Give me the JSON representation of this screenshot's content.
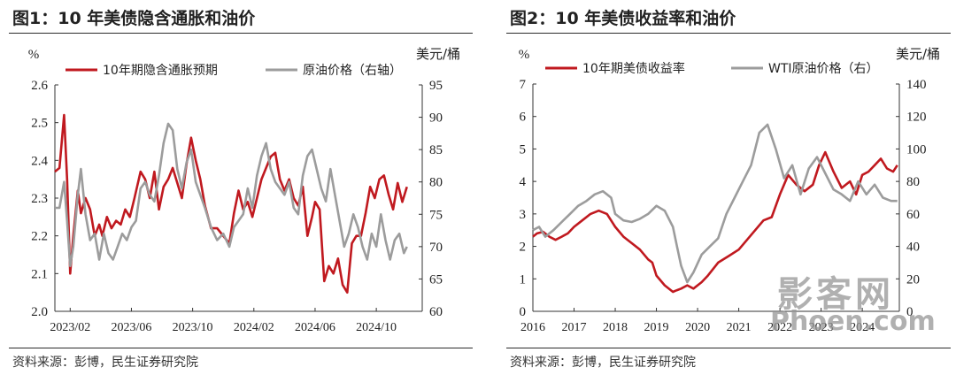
{
  "left": {
    "fig_title": "图1：10 年美债隐含通胀和油价",
    "source": "资料来源：彭博，民生证券研究院"
  },
  "right": {
    "fig_title": "图2：10 年美债收益率和油价",
    "source": "资料来源：彭博，民生证券研究院"
  },
  "watermark": {
    "cn": "影客网",
    "en": "Phoen.com"
  },
  "colors": {
    "primary_series": "#c0191f",
    "secondary_series": "#9c9c9c"
  },
  "chart_data": [
    {
      "type": "line",
      "title": "图1：10 年美债隐含通胀和油价",
      "ylabel": "%",
      "y2label": "美元/桶",
      "ylim": [
        2.0,
        2.6
      ],
      "y2lim": [
        60,
        95
      ],
      "yticks": [
        "2.0",
        "2.1",
        "2.2",
        "2.3",
        "2.4",
        "2.5",
        "2.6"
      ],
      "y2ticks": [
        "60",
        "65",
        "70",
        "75",
        "80",
        "85",
        "90",
        "95"
      ],
      "xlim": [
        0,
        24
      ],
      "x_unit": "months since 2023-01",
      "xtick_labels": [
        "2023/02",
        "2023/06",
        "2023/10",
        "2024/02",
        "2024/06",
        "2024/10"
      ],
      "xtick_positions": [
        1,
        5,
        9,
        13,
        17,
        21
      ],
      "legend": "top",
      "grid": false,
      "series": [
        {
          "name": "10年期隐含通胀预期",
          "axis": "left",
          "x": [
            0,
            0.3,
            0.6,
            0.8,
            1.0,
            1.2,
            1.5,
            1.7,
            2.0,
            2.3,
            2.6,
            2.9,
            3.1,
            3.4,
            3.7,
            4.0,
            4.3,
            4.6,
            4.9,
            5.2,
            5.6,
            5.9,
            6.2,
            6.5,
            6.8,
            7.1,
            7.4,
            7.7,
            8.0,
            8.3,
            8.6,
            8.9,
            9.2,
            9.5,
            9.8,
            10.2,
            10.6,
            11.0,
            11.4,
            11.7,
            12.0,
            12.3,
            12.6,
            12.9,
            13.2,
            13.5,
            13.8,
            14.1,
            14.4,
            14.7,
            15.0,
            15.3,
            15.6,
            15.9,
            16.2,
            16.5,
            16.8,
            17.0,
            17.3,
            17.6,
            17.9,
            18.2,
            18.5,
            18.8,
            19.1,
            19.4,
            19.7,
            20.0,
            20.3,
            20.6,
            20.9,
            21.2,
            21.5,
            21.8,
            22.1,
            22.4,
            22.7,
            23.0
          ],
          "y": [
            2.37,
            2.38,
            2.52,
            2.35,
            2.1,
            2.2,
            2.32,
            2.26,
            2.3,
            2.27,
            2.2,
            2.23,
            2.2,
            2.25,
            2.22,
            2.24,
            2.23,
            2.27,
            2.25,
            2.3,
            2.37,
            2.35,
            2.3,
            2.37,
            2.27,
            2.33,
            2.35,
            2.38,
            2.34,
            2.3,
            2.39,
            2.46,
            2.4,
            2.35,
            2.28,
            2.22,
            2.22,
            2.2,
            2.18,
            2.26,
            2.32,
            2.27,
            2.29,
            2.25,
            2.3,
            2.35,
            2.38,
            2.41,
            2.42,
            2.35,
            2.32,
            2.35,
            2.3,
            2.28,
            2.33,
            2.2,
            2.25,
            2.29,
            2.27,
            2.08,
            2.12,
            2.1,
            2.14,
            2.07,
            2.05,
            2.18,
            2.2,
            2.2,
            2.26,
            2.33,
            2.3,
            2.35,
            2.36,
            2.31,
            2.27,
            2.34,
            2.29,
            2.33
          ]
        },
        {
          "name": "原油价格（右轴）",
          "axis": "right",
          "x": [
            0,
            0.3,
            0.6,
            0.8,
            1.0,
            1.2,
            1.5,
            1.7,
            2.0,
            2.3,
            2.6,
            2.9,
            3.2,
            3.5,
            3.8,
            4.1,
            4.4,
            4.7,
            5.0,
            5.3,
            5.6,
            5.9,
            6.2,
            6.5,
            6.8,
            7.1,
            7.4,
            7.7,
            8.0,
            8.3,
            8.6,
            8.9,
            9.2,
            9.5,
            9.8,
            10.2,
            10.6,
            11.0,
            11.4,
            11.7,
            12.0,
            12.3,
            12.6,
            12.9,
            13.2,
            13.5,
            13.8,
            14.1,
            14.4,
            14.7,
            15.0,
            15.3,
            15.6,
            15.9,
            16.2,
            16.5,
            16.8,
            17.1,
            17.4,
            17.7,
            18.0,
            18.3,
            18.6,
            18.9,
            19.2,
            19.5,
            19.8,
            20.1,
            20.4,
            20.7,
            21.0,
            21.3,
            21.6,
            21.9,
            22.2,
            22.5,
            22.8,
            23.0
          ],
          "y": [
            76,
            76,
            80,
            74,
            67,
            70,
            78,
            82,
            75,
            71,
            72,
            68,
            72,
            69,
            68,
            70,
            72,
            71,
            73,
            74,
            79,
            80,
            78,
            77,
            81,
            86,
            89,
            88,
            82,
            79,
            83,
            85,
            80,
            78,
            76,
            73,
            71,
            72,
            70,
            73,
            74,
            75,
            79,
            76,
            81,
            84,
            86,
            82,
            80,
            79,
            78,
            80,
            76,
            75,
            81,
            84,
            85,
            82,
            79,
            77,
            82,
            78,
            74,
            70,
            72,
            75,
            73,
            70,
            68,
            72,
            70,
            75,
            71,
            68,
            71,
            72,
            69,
            70
          ]
        }
      ]
    },
    {
      "type": "line",
      "title": "图2：10 年美债收益率和油价",
      "ylabel": "%",
      "y2label": "美元/桶",
      "ylim": [
        0,
        7
      ],
      "y2lim": [
        0,
        140
      ],
      "yticks": [
        "0",
        "1",
        "2",
        "3",
        "4",
        "5",
        "6",
        "7"
      ],
      "y2ticks": [
        "0",
        "20",
        "40",
        "60",
        "80",
        "100",
        "120",
        "140"
      ],
      "xlim": [
        2016,
        2024.9
      ],
      "xtick_labels": [
        "2016",
        "2017",
        "2018",
        "2019",
        "2020",
        "2021",
        "2022",
        "2023",
        "2024"
      ],
      "xtick_positions": [
        2016,
        2017,
        2018,
        2019,
        2020,
        2021,
        2022,
        2023,
        2024
      ],
      "legend": "top",
      "grid": false,
      "series": [
        {
          "name": "10年期美债收益率",
          "axis": "left",
          "x": [
            2016.0,
            2016.1,
            2016.25,
            2016.4,
            2016.55,
            2016.7,
            2016.85,
            2017.0,
            2017.2,
            2017.4,
            2017.6,
            2017.8,
            2018.0,
            2018.2,
            2018.4,
            2018.6,
            2018.8,
            2018.9,
            2019.0,
            2019.2,
            2019.4,
            2019.5,
            2019.6,
            2019.75,
            2019.9,
            2020.1,
            2020.25,
            2020.5,
            2020.75,
            2021.0,
            2021.2,
            2021.4,
            2021.6,
            2021.8,
            2022.0,
            2022.2,
            2022.4,
            2022.6,
            2022.8,
            2022.95,
            2023.1,
            2023.3,
            2023.5,
            2023.7,
            2023.85,
            2024.0,
            2024.15,
            2024.3,
            2024.45,
            2024.6,
            2024.75,
            2024.85
          ],
          "y": [
            2.3,
            2.4,
            2.45,
            2.3,
            2.2,
            2.3,
            2.4,
            2.6,
            2.8,
            3.0,
            3.1,
            3.0,
            2.6,
            2.3,
            2.1,
            1.9,
            1.6,
            1.5,
            1.1,
            0.8,
            0.6,
            0.65,
            0.7,
            0.8,
            0.7,
            0.9,
            1.1,
            1.5,
            1.7,
            1.9,
            2.2,
            2.5,
            2.8,
            2.9,
            3.6,
            4.2,
            3.9,
            3.7,
            3.9,
            4.5,
            4.9,
            4.3,
            3.8,
            4.0,
            3.6,
            4.2,
            4.3,
            4.5,
            4.7,
            4.4,
            4.3,
            4.5
          ]
        },
        {
          "name": "WTI原油价格（右）",
          "axis": "right",
          "x": [
            2016.0,
            2016.15,
            2016.3,
            2016.5,
            2016.7,
            2016.9,
            2017.1,
            2017.3,
            2017.5,
            2017.7,
            2017.9,
            2018.0,
            2018.2,
            2018.4,
            2018.6,
            2018.8,
            2019.0,
            2019.2,
            2019.4,
            2019.5,
            2019.6,
            2019.75,
            2019.9,
            2020.1,
            2020.3,
            2020.5,
            2020.7,
            2020.9,
            2021.1,
            2021.3,
            2021.5,
            2021.7,
            2021.9,
            2022.1,
            2022.3,
            2022.5,
            2022.7,
            2022.9,
            2023.1,
            2023.3,
            2023.5,
            2023.7,
            2023.9,
            2024.1,
            2024.3,
            2024.5,
            2024.7,
            2024.85
          ],
          "y": [
            50,
            52,
            46,
            50,
            55,
            60,
            65,
            68,
            72,
            74,
            70,
            60,
            56,
            55,
            57,
            60,
            65,
            62,
            52,
            40,
            28,
            18,
            24,
            35,
            40,
            45,
            60,
            70,
            80,
            90,
            110,
            115,
            100,
            82,
            90,
            72,
            88,
            95,
            85,
            75,
            72,
            68,
            80,
            72,
            78,
            70,
            68,
            68
          ]
        }
      ]
    }
  ]
}
